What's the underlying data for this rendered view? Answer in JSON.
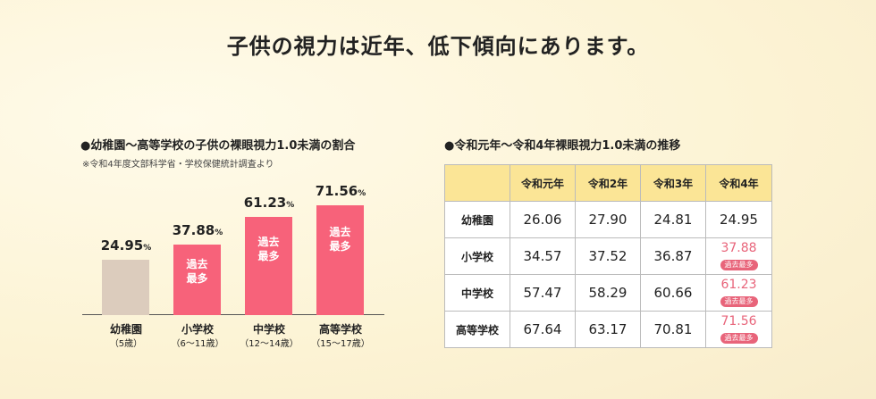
{
  "title": "子供の視力は近年、低下傾向にあります。",
  "chart_data": {
    "type": "bar",
    "title": "●幼稚園〜高等学校の子供の裸眼視力1.0未満の割合",
    "note": "※令和4年度文部科学省・学校保健統計調査より",
    "categories": [
      "幼稚園",
      "小学校",
      "中学校",
      "高等学校"
    ],
    "sublabels": [
      "（5歳）",
      "（6〜11歳）",
      "（12〜14歳）",
      "（15〜17歳）"
    ],
    "values": [
      24.95,
      37.88,
      61.23,
      71.56
    ],
    "value_labels": [
      "24.95",
      "37.88",
      "61.23",
      "71.56"
    ],
    "unit": "%",
    "bar_badges": [
      "",
      "過去最多",
      "過去最多",
      "過去最多"
    ],
    "colors": [
      "#dcccbd",
      "#f7627a",
      "#f7627a",
      "#f7627a"
    ]
  },
  "table": {
    "title": "●令和元年〜令和4年裸眼視力1.0未満の推移",
    "headers": [
      "",
      "令和元年",
      "令和2年",
      "令和3年",
      "令和4年"
    ],
    "rows": [
      {
        "label": "幼稚園",
        "values": [
          "26.06",
          "27.90",
          "24.81",
          "24.95"
        ],
        "badge": ""
      },
      {
        "label": "小学校",
        "values": [
          "34.57",
          "37.52",
          "36.87",
          "37.88"
        ],
        "badge": "過去最多"
      },
      {
        "label": "中学校",
        "values": [
          "57.47",
          "58.29",
          "60.66",
          "61.23"
        ],
        "badge": "過去最多"
      },
      {
        "label": "高等学校",
        "values": [
          "67.64",
          "63.17",
          "70.81",
          "71.56"
        ],
        "badge": "過去最多"
      }
    ]
  }
}
